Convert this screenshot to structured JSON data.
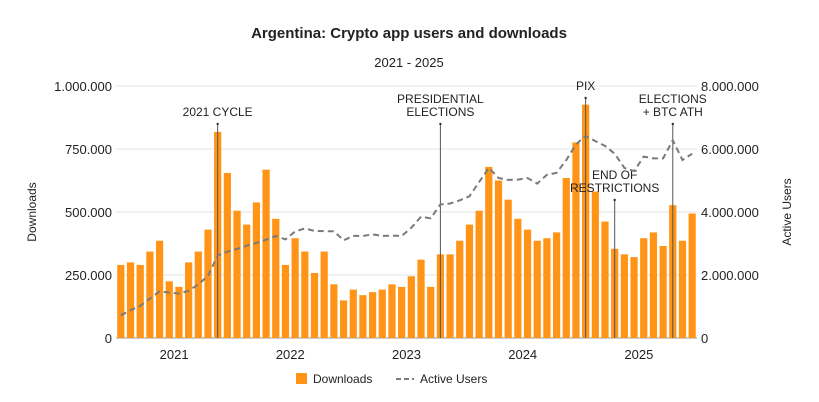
{
  "chart_data": {
    "type": "bar+line",
    "title": "Argentina: Crypto app users and downloads",
    "subtitle": "2021 - 2025",
    "ylabel_left": "Downloads",
    "ylabel_right": "Active Users",
    "ylim_left": [
      0,
      1000000
    ],
    "ylim_right": [
      0,
      8000000
    ],
    "yticks_left": [
      "0",
      "250.000",
      "500.000",
      "750.000",
      "1.000.000"
    ],
    "yticks_right": [
      "0",
      "2.000.000",
      "4.000.000",
      "6.000.000",
      "8.000.000"
    ],
    "x_year_labels": [
      "2021",
      "2022",
      "2023",
      "2024",
      "2025"
    ],
    "grid": true,
    "legend_position": "bottom",
    "colors": {
      "downloads": "#ff9416",
      "active_users": "#7a7a7a"
    },
    "series": [
      {
        "name": "Downloads",
        "type": "bar",
        "axis": "left",
        "values": [
          290000,
          300000,
          290000,
          343000,
          386000,
          225000,
          203000,
          300000,
          343000,
          430000,
          818000,
          655000,
          505000,
          450000,
          538000,
          668000,
          473000,
          290000,
          396000,
          343000,
          258000,
          343000,
          213000,
          149000,
          192000,
          170000,
          182000,
          192000,
          213000,
          203000,
          245000,
          311000,
          203000,
          332000,
          332000,
          386000,
          450000,
          505000,
          679000,
          625000,
          549000,
          473000,
          430000,
          386000,
          396000,
          419000,
          635000,
          776000,
          926000,
          581000,
          462000,
          354000,
          332000,
          321000,
          396000,
          419000,
          365000,
          527000,
          386000,
          494000
        ]
      },
      {
        "name": "Active Users",
        "type": "line",
        "style": "dashed",
        "axis": "right",
        "values": [
          720000,
          880000,
          1020000,
          1250000,
          1480000,
          1440000,
          1410000,
          1500000,
          1700000,
          1970000,
          2620000,
          2740000,
          2830000,
          2930000,
          3020000,
          3120000,
          3240000,
          3130000,
          3380000,
          3480000,
          3400000,
          3390000,
          3390000,
          3100000,
          3240000,
          3240000,
          3290000,
          3240000,
          3250000,
          3240000,
          3500000,
          3850000,
          3800000,
          4240000,
          4270000,
          4370000,
          4500000,
          4950000,
          5400000,
          5080000,
          5020000,
          5030000,
          5080000,
          4900000,
          5180000,
          5240000,
          5650000,
          6150000,
          6420000,
          6250000,
          6100000,
          5850000,
          5400000,
          5300000,
          5760000,
          5700000,
          5700000,
          6280000,
          5650000,
          5850000
        ]
      }
    ],
    "annotations": [
      {
        "lines": [
          "2021 CYCLE"
        ],
        "index": 10
      },
      {
        "lines": [
          "PRESIDENTIAL",
          "ELECTIONS"
        ],
        "index": 33
      },
      {
        "lines": [
          "PIX"
        ],
        "index": 48
      },
      {
        "lines": [
          "END OF",
          "RESTRICTIONS"
        ],
        "index": 51
      },
      {
        "lines": [
          "ELECTIONS",
          "+ BTC ATH"
        ],
        "index": 57
      }
    ]
  }
}
